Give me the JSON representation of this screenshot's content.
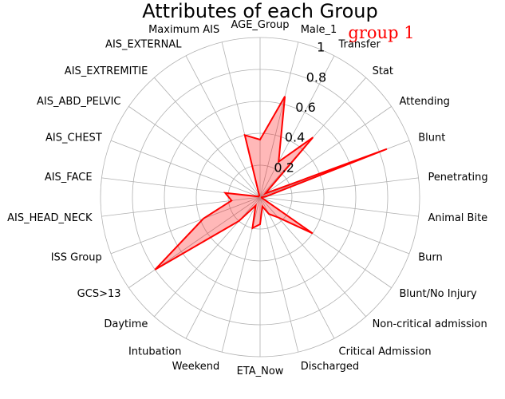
{
  "chart_data": {
    "type": "radar",
    "title": "Attributes of each Group",
    "group_label": "group 1",
    "group_color": "#ff0000",
    "fill_color": "#ff0000",
    "grid": true,
    "r_range": [
      0,
      1
    ],
    "r_ticks": [
      0.2,
      0.4,
      0.6,
      0.8,
      1
    ],
    "r_tick_labels": [
      "0.2",
      "0.4",
      "0.6",
      "0.8",
      "1"
    ],
    "categories": [
      "Male_1",
      "Transfer",
      "Stat",
      "Attending",
      "Blunt",
      "Penetrating",
      "Animal Bite",
      "Burn",
      "Blunt/No Injury",
      "Non-critical admission",
      "Critical Admission",
      "Discharged",
      "ETA_Now",
      "Weekend",
      "Intubation",
      "Daytime",
      "GCS>13",
      "ISS Group",
      "AIS_HEAD_NECK",
      "AIS_FACE",
      "AIS_CHEST",
      "AIS_ABD_PELVIC",
      "AIS_EXTREMITIE",
      "AIS_EXTERNAL",
      "Maximum AIS",
      "AGE_Group"
    ],
    "series": [
      {
        "name": "group 1",
        "values": [
          0.65,
          0.25,
          0.5,
          0.04,
          0.85,
          0.04,
          0.01,
          0.01,
          0.4,
          0.17,
          0.12,
          0.06,
          0.17,
          0.2,
          0.06,
          0.2,
          0.8,
          0.38,
          0.18,
          0.22,
          0.01,
          0.01,
          0.01,
          0.01,
          0.4,
          0.36
        ]
      }
    ]
  }
}
